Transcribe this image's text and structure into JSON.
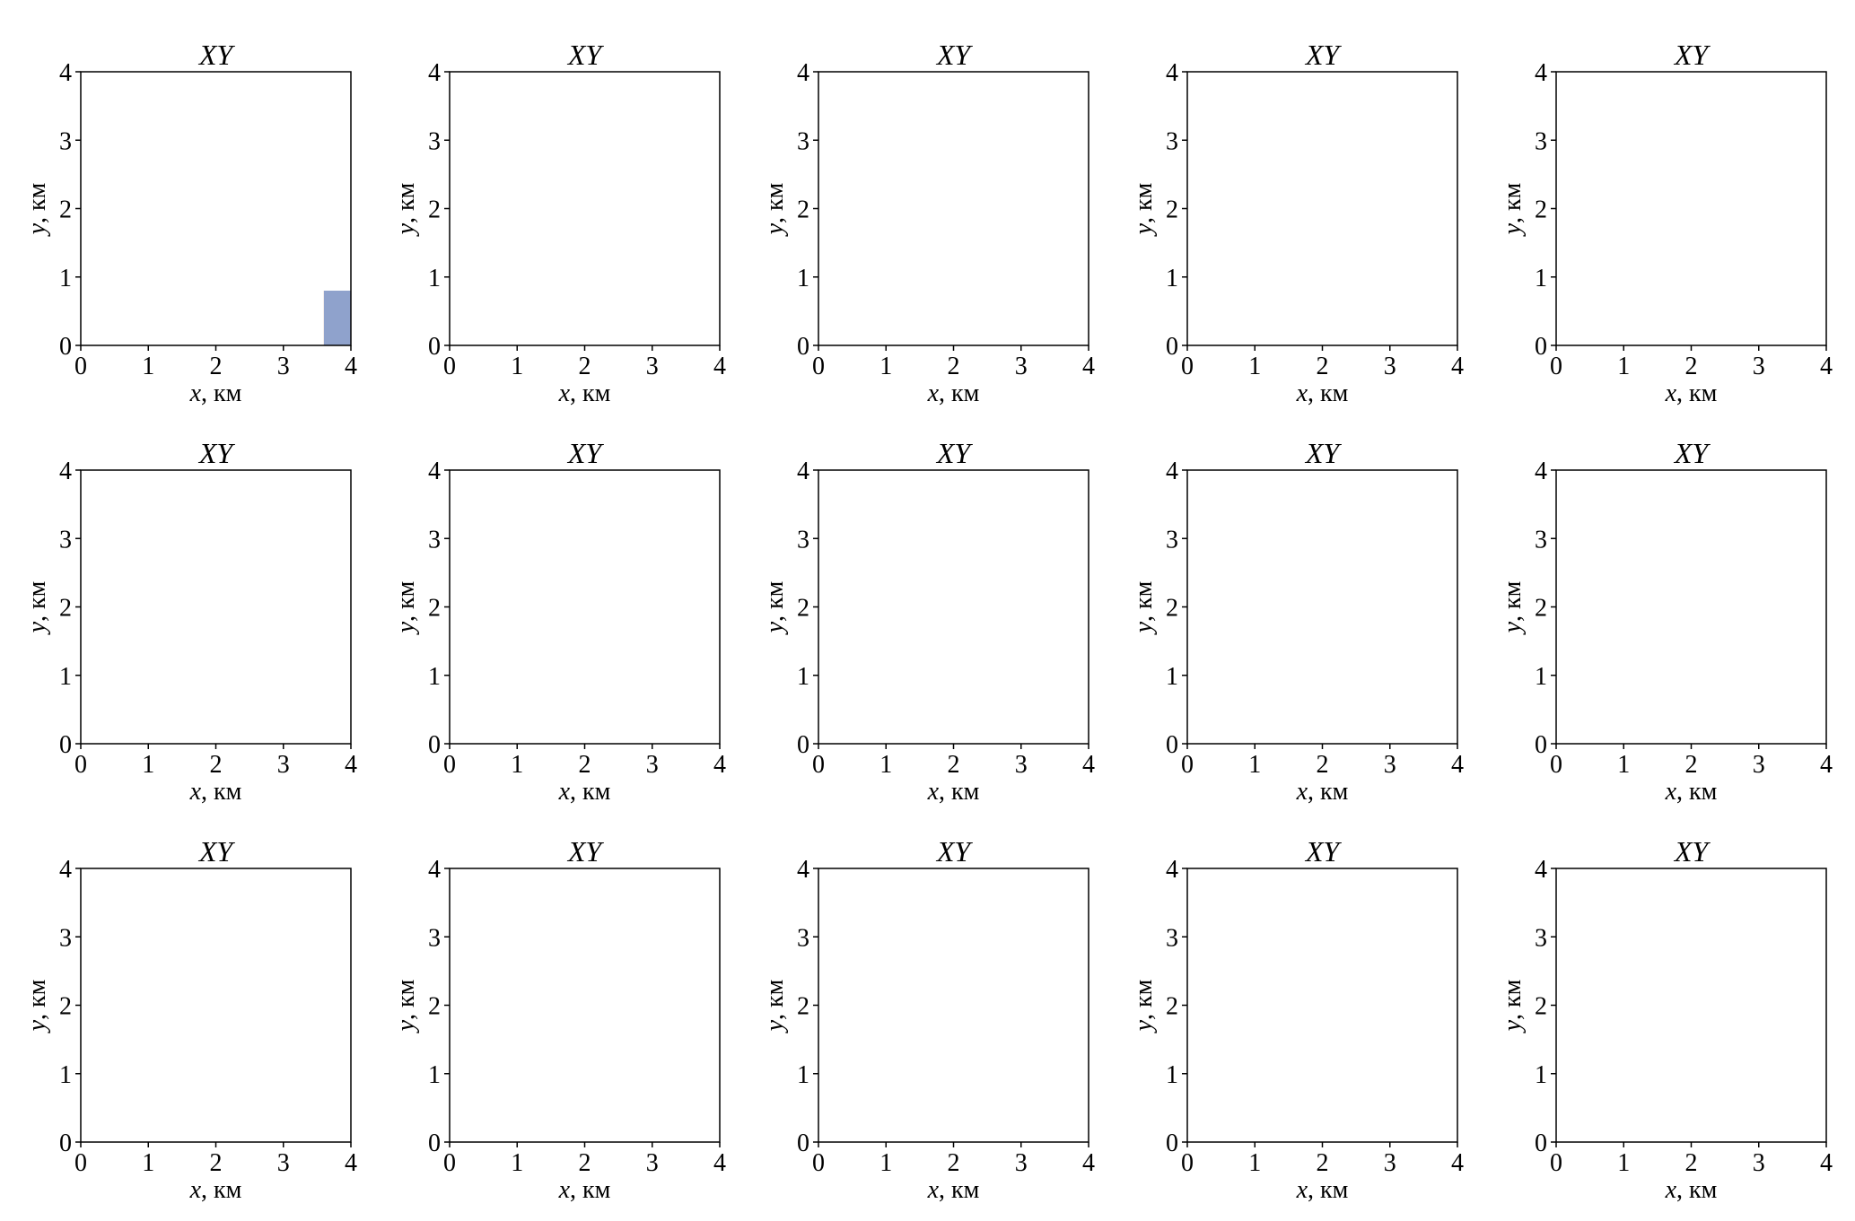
{
  "palette": {
    "orange": "#F08455",
    "blue": "#8FA2CC",
    "teal": "#5EBB9D",
    "gray": "#BBBBBB",
    "tan": "#E8C896",
    "yellow": "#FBD800",
    "green": "#A9C83A",
    "pink": "#E28ABC"
  },
  "chart_data": [
    {
      "type": "heatmap",
      "title": "XY",
      "xlabel": "x, км",
      "ylabel": "y, км",
      "xlim": [
        0,
        4
      ],
      "ylim": [
        0,
        4
      ],
      "xticks": [
        "0",
        "1",
        "2",
        "3",
        "4"
      ],
      "yticks": [
        "0",
        "1",
        "2",
        "3",
        "4"
      ]
    },
    {
      "type": "heatmap",
      "title": "XY",
      "xlabel": "x, км",
      "ylabel": "y, км",
      "xlim": [
        0,
        4
      ],
      "ylim": [
        0,
        4
      ],
      "xticks": [
        "0",
        "1",
        "2",
        "3",
        "4"
      ],
      "yticks": [
        "0",
        "1",
        "2",
        "3",
        "4"
      ]
    },
    {
      "type": "heatmap",
      "title": "XY",
      "xlabel": "x, км",
      "ylabel": "y, км",
      "xlim": [
        0,
        4
      ],
      "ylim": [
        0,
        4
      ],
      "xticks": [
        "0",
        "1",
        "2",
        "3",
        "4"
      ],
      "yticks": [
        "0",
        "1",
        "2",
        "3",
        "4"
      ]
    },
    {
      "type": "heatmap",
      "title": "XY",
      "xlabel": "x, км",
      "ylabel": "y, км",
      "xlim": [
        0,
        4
      ],
      "ylim": [
        0,
        4
      ],
      "xticks": [
        "0",
        "1",
        "2",
        "3",
        "4"
      ],
      "yticks": [
        "0",
        "1",
        "2",
        "3",
        "4"
      ]
    },
    {
      "type": "heatmap",
      "title": "XY",
      "xlabel": "x, км",
      "ylabel": "y, км",
      "xlim": [
        0,
        4
      ],
      "ylim": [
        0,
        4
      ],
      "xticks": [
        "0",
        "1",
        "2",
        "3",
        "4"
      ],
      "yticks": [
        "0",
        "1",
        "2",
        "3",
        "4"
      ]
    },
    {
      "type": "heatmap",
      "title": "XY",
      "xlabel": "x, км",
      "ylabel": "y, км",
      "xlim": [
        0,
        4
      ],
      "ylim": [
        0,
        4
      ],
      "xticks": [
        "0",
        "1",
        "2",
        "3",
        "4"
      ],
      "yticks": [
        "0",
        "1",
        "2",
        "3",
        "4"
      ]
    },
    {
      "type": "heatmap",
      "title": "XY",
      "xlabel": "x, км",
      "ylabel": "y, км",
      "xlim": [
        0,
        4
      ],
      "ylim": [
        0,
        4
      ],
      "xticks": [
        "0",
        "1",
        "2",
        "3",
        "4"
      ],
      "yticks": [
        "0",
        "1",
        "2",
        "3",
        "4"
      ]
    },
    {
      "type": "heatmap",
      "title": "XY",
      "xlabel": "x, км",
      "ylabel": "y, км",
      "xlim": [
        0,
        4
      ],
      "ylim": [
        0,
        4
      ],
      "xticks": [
        "0",
        "1",
        "2",
        "3",
        "4"
      ],
      "yticks": [
        "0",
        "1",
        "2",
        "3",
        "4"
      ]
    },
    {
      "type": "heatmap",
      "title": "XY",
      "xlabel": "x, км",
      "ylabel": "y, км",
      "xlim": [
        0,
        4
      ],
      "ylim": [
        0,
        4
      ],
      "xticks": [
        "0",
        "1",
        "2",
        "3",
        "4"
      ],
      "yticks": [
        "0",
        "1",
        "2",
        "3",
        "4"
      ]
    },
    {
      "type": "heatmap",
      "title": "XY",
      "xlabel": "x, км",
      "ylabel": "y, км",
      "xlim": [
        0,
        4
      ],
      "ylim": [
        0,
        4
      ],
      "xticks": [
        "0",
        "1",
        "2",
        "3",
        "4"
      ],
      "yticks": [
        "0",
        "1",
        "2",
        "3",
        "4"
      ]
    },
    {
      "type": "heatmap",
      "title": "XY",
      "xlabel": "x, км",
      "ylabel": "y, км",
      "xlim": [
        0,
        4
      ],
      "ylim": [
        0,
        4
      ],
      "xticks": [
        "0",
        "1",
        "2",
        "3",
        "4"
      ],
      "yticks": [
        "0",
        "1",
        "2",
        "3",
        "4"
      ]
    },
    {
      "type": "heatmap",
      "title": "XY",
      "xlabel": "x, км",
      "ylabel": "y, км",
      "xlim": [
        0,
        4
      ],
      "ylim": [
        0,
        4
      ],
      "xticks": [
        "0",
        "1",
        "2",
        "3",
        "4"
      ],
      "yticks": [
        "0",
        "1",
        "2",
        "3",
        "4"
      ]
    },
    {
      "type": "heatmap",
      "title": "XY",
      "xlabel": "x, км",
      "ylabel": "y, км",
      "xlim": [
        0,
        4
      ],
      "ylim": [
        0,
        4
      ],
      "xticks": [
        "0",
        "1",
        "2",
        "3",
        "4"
      ],
      "yticks": [
        "0",
        "1",
        "2",
        "3",
        "4"
      ]
    },
    {
      "type": "heatmap",
      "title": "XY",
      "xlabel": "x, км",
      "ylabel": "y, км",
      "xlim": [
        0,
        4
      ],
      "ylim": [
        0,
        4
      ],
      "xticks": [
        "0",
        "1",
        "2",
        "3",
        "4"
      ],
      "yticks": [
        "0",
        "1",
        "2",
        "3",
        "4"
      ]
    },
    {
      "type": "heatmap",
      "title": "XY",
      "xlabel": "x, км",
      "ylabel": "y, км",
      "xlim": [
        0,
        4
      ],
      "ylim": [
        0,
        4
      ],
      "xticks": [
        "0",
        "1",
        "2",
        "3",
        "4"
      ],
      "yticks": [
        "0",
        "1",
        "2",
        "3",
        "4"
      ]
    }
  ]
}
